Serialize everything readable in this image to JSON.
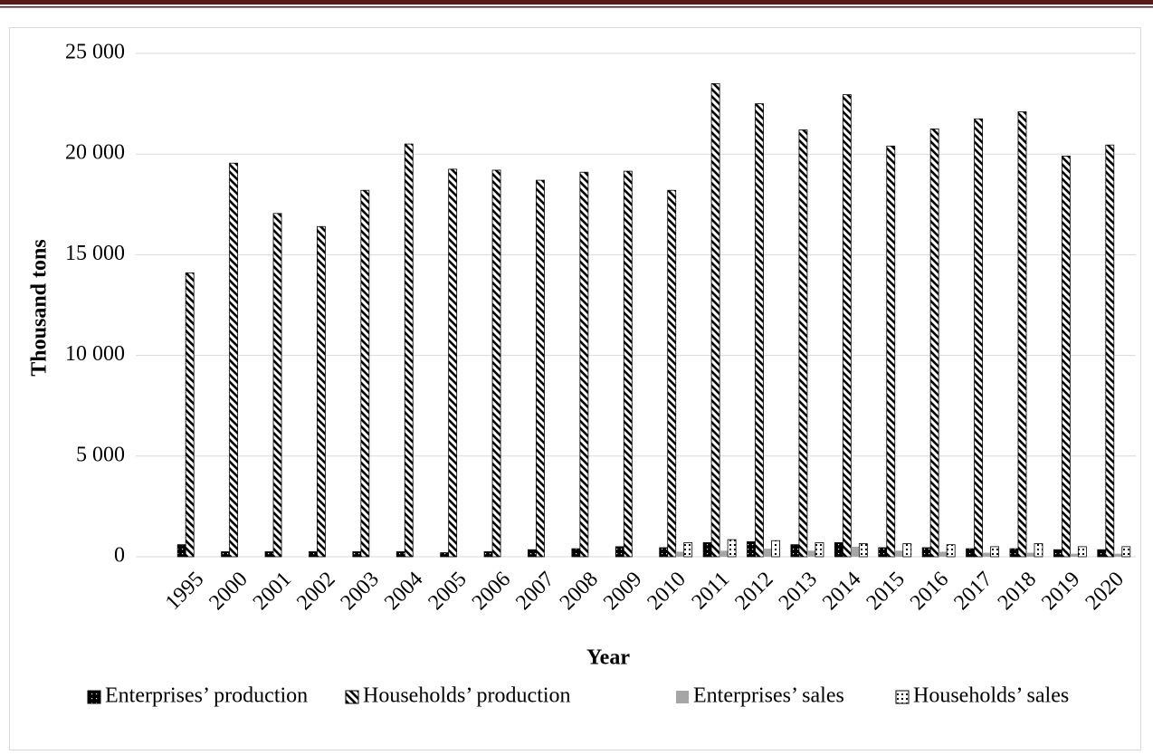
{
  "chart_data": {
    "type": "bar",
    "x_label": "Year",
    "y_label": "Thousand tons",
    "categories": [
      "1995",
      "2000",
      "2001",
      "2002",
      "2003",
      "2004",
      "2005",
      "2006",
      "2007",
      "2008",
      "2009",
      "2010",
      "2011",
      "2012",
      "2013",
      "2014",
      "2015",
      "2016",
      "2017",
      "2018",
      "2019",
      "2020"
    ],
    "series": [
      {
        "name": "Enterprises’ production",
        "color": "#000000",
        "values": [
          600,
          250,
          250,
          250,
          250,
          250,
          200,
          250,
          350,
          400,
          500,
          450,
          700,
          750,
          600,
          700,
          450,
          450,
          400,
          400,
          350,
          350
        ]
      },
      {
        "name": "Households’ production",
        "color": "#ffffff",
        "values": [
          14100,
          19550,
          17050,
          16400,
          18200,
          20500,
          19250,
          19200,
          18700,
          19100,
          19150,
          18200,
          23500,
          22500,
          21200,
          22950,
          20400,
          21250,
          21750,
          22100,
          19900,
          20450
        ]
      },
      {
        "name": "Enterprises’ sales",
        "color": "#a6a6a6",
        "values": [
          0,
          0,
          0,
          0,
          0,
          0,
          0,
          0,
          0,
          0,
          0,
          250,
          300,
          400,
          300,
          500,
          300,
          250,
          200,
          200,
          150,
          150
        ]
      },
      {
        "name": "Households’ sales",
        "color": "#ffffff",
        "values": [
          0,
          0,
          0,
          0,
          0,
          0,
          0,
          0,
          0,
          0,
          0,
          700,
          850,
          800,
          700,
          650,
          650,
          600,
          500,
          650,
          500,
          500
        ]
      }
    ],
    "ylim": [
      0,
      25000
    ],
    "yticks": [
      0,
      {
        "value": 5000,
        "label": "5 000"
      },
      {
        "value": 10000,
        "label": "10 000"
      },
      {
        "value": 15000,
        "label": "15 000"
      },
      {
        "value": 20000,
        "label": "20 000"
      },
      {
        "value": 25000,
        "label": "25 000"
      }
    ],
    "grid": true,
    "legend": "bottom"
  }
}
